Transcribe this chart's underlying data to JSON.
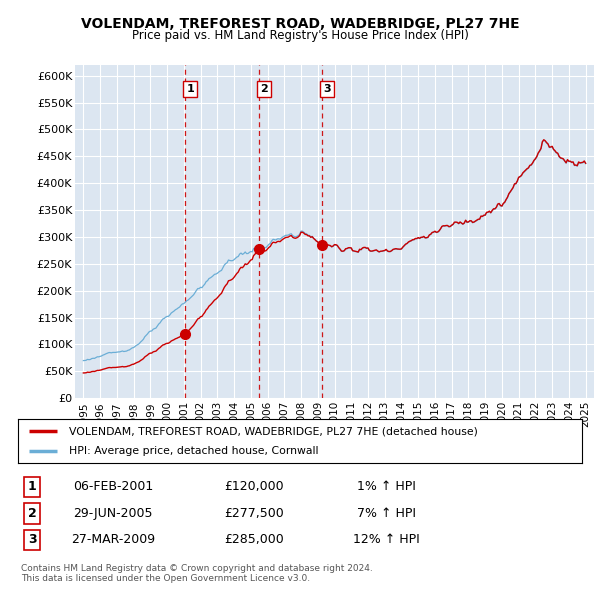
{
  "title": "VOLENDAM, TREFOREST ROAD, WADEBRIDGE, PL27 7HE",
  "subtitle": "Price paid vs. HM Land Registry's House Price Index (HPI)",
  "ylabel_ticks": [
    "£0",
    "£50K",
    "£100K",
    "£150K",
    "£200K",
    "£250K",
    "£300K",
    "£350K",
    "£400K",
    "£450K",
    "£500K",
    "£550K",
    "£600K"
  ],
  "ylim": [
    0,
    620000
  ],
  "ytick_values": [
    0,
    50000,
    100000,
    150000,
    200000,
    250000,
    300000,
    350000,
    400000,
    450000,
    500000,
    550000,
    600000
  ],
  "hpi_color": "#6baed6",
  "price_color": "#cc0000",
  "dashed_color": "#cc0000",
  "background_color": "#dce6f1",
  "sale_markers": [
    {
      "label": "1",
      "year": 2001.09,
      "price": 120000
    },
    {
      "label": "2",
      "year": 2005.49,
      "price": 277500
    },
    {
      "label": "3",
      "year": 2009.23,
      "price": 285000
    }
  ],
  "legend_entry1": "VOLENDAM, TREFOREST ROAD, WADEBRIDGE, PL27 7HE (detached house)",
  "legend_entry2": "HPI: Average price, detached house, Cornwall",
  "table_rows": [
    {
      "num": "1",
      "date": "06-FEB-2001",
      "price": "£120,000",
      "hpi": "1% ↑ HPI"
    },
    {
      "num": "2",
      "date": "29-JUN-2005",
      "price": "£277,500",
      "hpi": "7% ↑ HPI"
    },
    {
      "num": "3",
      "date": "27-MAR-2009",
      "price": "£285,000",
      "hpi": "12% ↑ HPI"
    }
  ],
  "footer": "Contains HM Land Registry data © Crown copyright and database right 2024.\nThis data is licensed under the Open Government Licence v3.0.",
  "xlim_start": 1994.5,
  "xlim_end": 2025.5,
  "xtick_years": [
    1995,
    1996,
    1997,
    1998,
    1999,
    2000,
    2001,
    2002,
    2003,
    2004,
    2005,
    2006,
    2007,
    2008,
    2009,
    2010,
    2011,
    2012,
    2013,
    2014,
    2015,
    2016,
    2017,
    2018,
    2019,
    2020,
    2021,
    2022,
    2023,
    2024,
    2025
  ]
}
